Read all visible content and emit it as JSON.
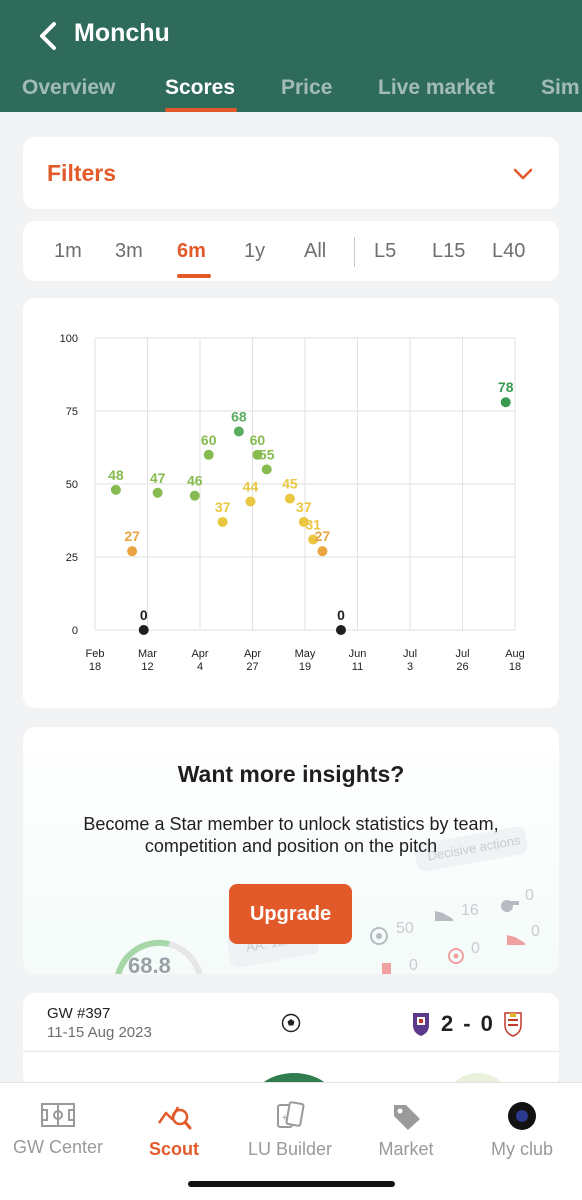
{
  "header": {
    "title": "Monchu",
    "tabs": [
      {
        "label": "Overview"
      },
      {
        "label": "Scores"
      },
      {
        "label": "Price"
      },
      {
        "label": "Live market"
      },
      {
        "label": "Sim"
      }
    ],
    "active_tab": "Scores",
    "colors": {
      "bar": "#2f6b5b",
      "accent": "#e35a2a"
    }
  },
  "filters": {
    "label": "Filters"
  },
  "ranges": {
    "items": [
      "1m",
      "3m",
      "6m",
      "1y",
      "All",
      "L5",
      "L15",
      "L40"
    ],
    "active": "6m"
  },
  "chart_data": {
    "type": "scatter",
    "title": "",
    "xlabel": "",
    "ylabel": "",
    "ylim": [
      0,
      100
    ],
    "yticks": [
      0,
      25,
      50,
      75,
      100
    ],
    "xticks": [
      {
        "line1": "Feb",
        "line2": "18"
      },
      {
        "line1": "Mar",
        "line2": "12"
      },
      {
        "line1": "Apr",
        "line2": "4"
      },
      {
        "line1": "Apr",
        "line2": "27"
      },
      {
        "line1": "May",
        "line2": "19"
      },
      {
        "line1": "Jun",
        "line2": "11"
      },
      {
        "line1": "Jul",
        "line2": "3"
      },
      {
        "line1": "Jul",
        "line2": "26"
      },
      {
        "line1": "Aug",
        "line2": "18"
      }
    ],
    "xrange": [
      "2023-02-18",
      "2023-08-18"
    ],
    "grid": true,
    "points": [
      {
        "date": "2023-02-27",
        "value": 48,
        "color": "#86bc4f"
      },
      {
        "date": "2023-03-06",
        "value": 27,
        "color": "#e9a441"
      },
      {
        "date": "2023-03-11",
        "value": 0,
        "color": "#1f1f1f"
      },
      {
        "date": "2023-03-17",
        "value": 47,
        "color": "#86bc4f"
      },
      {
        "date": "2023-04-02",
        "value": 46,
        "color": "#86bc4f"
      },
      {
        "date": "2023-04-08",
        "value": 60,
        "color": "#86bc4f"
      },
      {
        "date": "2023-04-14",
        "value": 37,
        "color": "#e9c741"
      },
      {
        "date": "2023-04-21",
        "value": 68,
        "color": "#5aad5f"
      },
      {
        "date": "2023-04-26",
        "value": 44,
        "color": "#e9c741"
      },
      {
        "date": "2023-04-29",
        "value": 60,
        "color": "#86bc4f"
      },
      {
        "date": "2023-05-03",
        "value": 55,
        "color": "#86bc4f"
      },
      {
        "date": "2023-05-13",
        "value": 45,
        "color": "#e9c741"
      },
      {
        "date": "2023-05-19",
        "value": 37,
        "color": "#e9c741"
      },
      {
        "date": "2023-05-23",
        "value": 31,
        "color": "#e9c741"
      },
      {
        "date": "2023-05-27",
        "value": 27,
        "color": "#e9a441"
      },
      {
        "date": "2023-06-04",
        "value": 0,
        "color": "#1f1f1f"
      },
      {
        "date": "2023-08-14",
        "value": 78,
        "color": "#3a9a52"
      }
    ]
  },
  "promo": {
    "title": "Want more insights?",
    "subtitle": "Become a Star member to unlock statistics by team, competition and position on the pitch",
    "button": "Upgrade",
    "decor": {
      "decisive_actions": "Decisive actions",
      "score": "68.8",
      "aa": "AA: 12.",
      "stats": [
        "50",
        "16",
        "0",
        "0",
        "0",
        "0"
      ]
    }
  },
  "match": {
    "gw": "GW #397",
    "dates": "11-15 Aug 2023",
    "home_goals": "2",
    "dash": "-",
    "away_goals": "0"
  },
  "bottom_nav": {
    "items": [
      {
        "label": "GW Center",
        "icon": "pitch-icon"
      },
      {
        "label": "Scout",
        "icon": "scout-chart-icon"
      },
      {
        "label": "LU Builder",
        "icon": "cards-icon"
      },
      {
        "label": "Market",
        "icon": "tag-icon"
      },
      {
        "label": "My club",
        "icon": "club-avatar-icon"
      }
    ],
    "active": "Scout"
  }
}
